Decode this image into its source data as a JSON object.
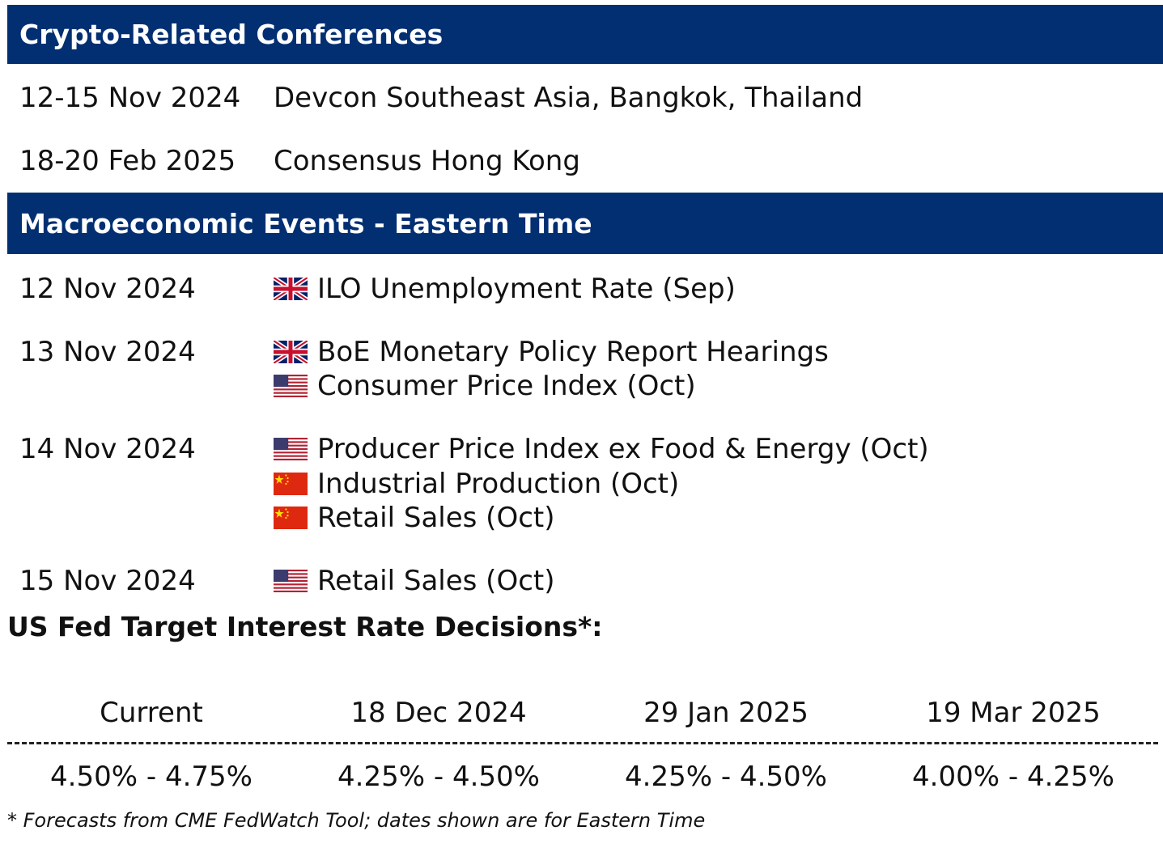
{
  "conferences": {
    "title": "Crypto-Related Conferences",
    "items": [
      {
        "date": "12-15 Nov 2024",
        "name": "Devcon Southeast Asia, Bangkok, Thailand"
      },
      {
        "date": "18-20 Feb 2025",
        "name": "Consensus Hong Kong"
      }
    ]
  },
  "macro": {
    "title": "Macroeconomic Events - Eastern Time",
    "groups": [
      {
        "date": "12 Nov 2024",
        "events": [
          {
            "flag": "uk-flag-icon",
            "label": "ILO Unemployment Rate (Sep)"
          }
        ]
      },
      {
        "date": "13 Nov 2024",
        "events": [
          {
            "flag": "uk-flag-icon",
            "label": "BoE Monetary Policy Report Hearings"
          },
          {
            "flag": "us-flag-icon",
            "label": "Consumer Price Index (Oct)"
          }
        ]
      },
      {
        "date": "14 Nov 2024",
        "events": [
          {
            "flag": "us-flag-icon",
            "label": "Producer Price Index ex Food & Energy (Oct)"
          },
          {
            "flag": "cn-flag-icon",
            "label": "Industrial Production (Oct)"
          },
          {
            "flag": "cn-flag-icon",
            "label": "Retail Sales (Oct)"
          }
        ]
      },
      {
        "date": "15 Nov 2024",
        "events": [
          {
            "flag": "us-flag-icon",
            "label": "Retail Sales (Oct)"
          }
        ]
      }
    ]
  },
  "fed": {
    "title": "US Fed Target Interest Rate Decisions*:",
    "columns": [
      {
        "label": "Current",
        "value": "4.50% - 4.75%"
      },
      {
        "label": "18 Dec 2024",
        "value": "4.25% - 4.50%"
      },
      {
        "label": "29 Jan 2025",
        "value": "4.25% - 4.50%"
      },
      {
        "label": "19 Mar 2025",
        "value": "4.00% - 4.25%"
      }
    ],
    "footnote": "* Forecasts from CME FedWatch Tool; dates shown are for Eastern Time"
  },
  "colors": {
    "header_bg": "#022f72",
    "header_text": "#ffffff"
  }
}
